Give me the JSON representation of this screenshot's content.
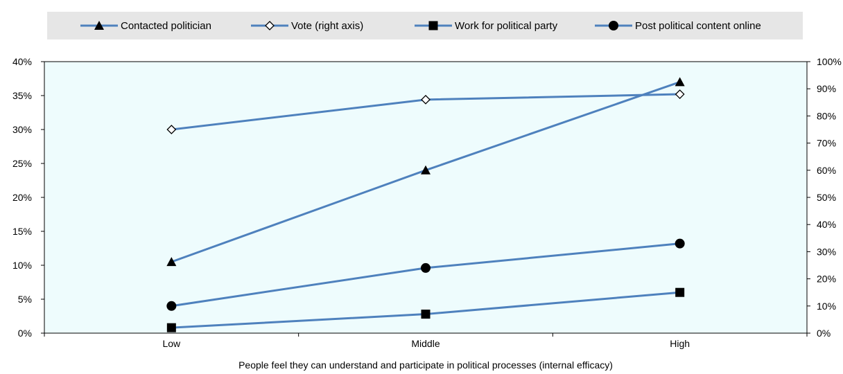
{
  "chart_data": {
    "type": "line",
    "categories": [
      "Low",
      "Middle",
      "High"
    ],
    "xlabel": "People feel they can understand and participate in political processes (internal efficacy)",
    "y_left": {
      "min": 0,
      "max": 40,
      "step": 5,
      "ticks": [
        "0%",
        "5%",
        "10%",
        "15%",
        "20%",
        "25%",
        "30%",
        "35%",
        "40%"
      ]
    },
    "y_right": {
      "min": 0,
      "max": 100,
      "step": 10,
      "ticks": [
        "0%",
        "10%",
        "20%",
        "30%",
        "40%",
        "50%",
        "60%",
        "70%",
        "80%",
        "90%",
        "100%"
      ]
    },
    "plot_background": "#eefcfd",
    "line_color": "#4e81bd",
    "legend_position": "top",
    "series": [
      {
        "name": "Contacted politician",
        "axis": "left",
        "marker": "triangle",
        "values": [
          10.5,
          24,
          37
        ]
      },
      {
        "name": "Vote (right axis)",
        "axis": "right",
        "marker": "diamond-open",
        "values": [
          75,
          86,
          88
        ]
      },
      {
        "name": "Work for political party",
        "axis": "left",
        "marker": "square",
        "values": [
          0.8,
          2.8,
          6
        ]
      },
      {
        "name": "Post political content online",
        "axis": "left",
        "marker": "circle",
        "values": [
          4,
          9.6,
          13.2
        ]
      }
    ]
  }
}
